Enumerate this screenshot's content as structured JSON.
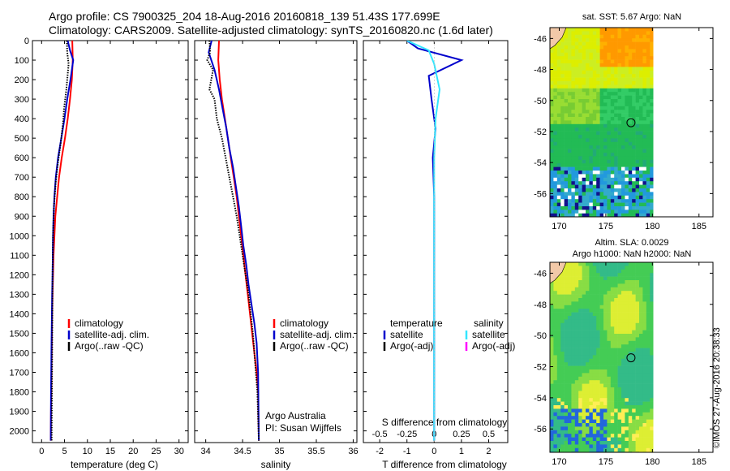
{
  "header": {
    "line1": "Argo profile: CS 7900325_204 18-Aug-2016 20160818_139 51.43S 177.699E",
    "line2": "Climatology: CARS2009. Satellite-adjusted climatology: synTS_20160820.nc (1.6d later)"
  },
  "credit": "©IMOS 27-Aug-2016 20:38:33",
  "colors": {
    "climatology": "#ff0000",
    "satellite": "#0000cc",
    "argo": "#000000",
    "satellite_salinity": "#33e6ff",
    "argo_adj_salinity": "#ff00ff"
  },
  "chart_data": [
    {
      "type": "line",
      "title": "",
      "xlabel": "temperature (deg C)",
      "ylabel": "",
      "xlim": [
        -2,
        32
      ],
      "ylim": [
        2060,
        0
      ],
      "x_ticks": [
        "0",
        "5",
        "10",
        "15",
        "20",
        "25",
        "30"
      ],
      "y_ticks": [
        "0",
        "100",
        "200",
        "300",
        "400",
        "500",
        "600",
        "700",
        "800",
        "900",
        "1000",
        "1100",
        "1200",
        "1300",
        "1400",
        "1500",
        "1600",
        "1700",
        "1800",
        "1900",
        "2000"
      ],
      "legend": {
        "placement": "center-left",
        "entries": [
          {
            "label": "climatology",
            "color": "#ff0000"
          },
          {
            "label": "satellite-adj. clim.",
            "color": "#0000cc"
          },
          {
            "label": "Argo(..raw -QC)",
            "color": "#000000"
          }
        ]
      },
      "series": [
        {
          "name": "climatology",
          "color": "#ff0000",
          "x": [
            6.7,
            6.8,
            6.6,
            6.2,
            5.7,
            5.1,
            4.4,
            3.8,
            3.4,
            3.0,
            2.8,
            2.6,
            2.5,
            2.4,
            2.3,
            2.25,
            2.2,
            2.15,
            2.1,
            2.05,
            2.0
          ],
          "y": [
            0,
            100,
            200,
            300,
            400,
            500,
            600,
            700,
            800,
            900,
            1000,
            1100,
            1200,
            1300,
            1400,
            1500,
            1600,
            1700,
            1800,
            1900,
            2050
          ]
        },
        {
          "name": "satellite-adj. clim.",
          "color": "#0000cc",
          "x": [
            5.7,
            6.2,
            6.9,
            6.3,
            5.6,
            5.0,
            4.3,
            3.6,
            3.1,
            2.8,
            2.6,
            2.5,
            2.45,
            2.4,
            2.3,
            2.25,
            2.2,
            2.15,
            2.1,
            2.05,
            2.0
          ],
          "y": [
            0,
            50,
            100,
            200,
            300,
            400,
            500,
            600,
            700,
            800,
            900,
            1000,
            1100,
            1200,
            1300,
            1400,
            1500,
            1600,
            1700,
            1800,
            2050
          ]
        },
        {
          "name": "Argo(..raw -QC)",
          "color": "#000000",
          "x": [
            5.5,
            5.6,
            5.9,
            5.4,
            4.9,
            4.7,
            4.2,
            3.6,
            3.1,
            2.7,
            2.5,
            2.4,
            2.3,
            2.2
          ],
          "y": [
            0,
            60,
            120,
            250,
            350,
            420,
            520,
            620,
            720,
            850,
            1000,
            1200,
            1600,
            2050
          ]
        }
      ]
    },
    {
      "type": "line",
      "title": "",
      "xlabel": "salinity",
      "ylabel": "",
      "xlim": [
        33.85,
        36.05
      ],
      "ylim": [
        2060,
        0
      ],
      "x_ticks": [
        "34",
        "34.5",
        "35",
        "35.5",
        "36"
      ],
      "legend": {
        "placement": "center-right",
        "entries": [
          {
            "label": "climatology",
            "color": "#ff0000"
          },
          {
            "label": "satellite-adj. clim.",
            "color": "#0000cc"
          },
          {
            "label": "Argo(..raw -QC)",
            "color": "#000000"
          }
        ]
      },
      "annotation": [
        "Argo Australia",
        "PI: Susan Wijffels"
      ],
      "series": [
        {
          "name": "climatology",
          "color": "#ff0000",
          "x": [
            34.18,
            34.17,
            34.19,
            34.22,
            34.26,
            34.3,
            34.34,
            34.38,
            34.42,
            34.45,
            34.48,
            34.51,
            34.54,
            34.57,
            34.6,
            34.63,
            34.66,
            34.69,
            34.71,
            34.72
          ],
          "y": [
            0,
            100,
            200,
            300,
            400,
            500,
            600,
            700,
            800,
            900,
            1000,
            1100,
            1200,
            1300,
            1400,
            1500,
            1600,
            1700,
            1800,
            2050
          ]
        },
        {
          "name": "satellite-adj. clim.",
          "color": "#0000cc",
          "x": [
            34.08,
            34.04,
            34.12,
            34.18,
            34.23,
            34.28,
            34.32,
            34.37,
            34.41,
            34.45,
            34.48,
            34.51,
            34.55,
            34.58,
            34.62,
            34.66,
            34.69,
            34.71,
            34.72
          ],
          "y": [
            0,
            60,
            150,
            250,
            350,
            450,
            550,
            650,
            750,
            850,
            950,
            1050,
            1150,
            1250,
            1350,
            1450,
            1550,
            1700,
            2050
          ]
        },
        {
          "name": "Argo(..raw -QC)",
          "color": "#000000",
          "x": [
            34.05,
            34.06,
            34.02,
            34.1,
            34.05,
            34.12,
            34.15,
            34.22,
            34.27,
            34.32,
            34.37,
            34.42,
            34.46,
            34.5,
            34.58,
            34.64,
            34.7,
            34.72
          ],
          "y": [
            0,
            60,
            100,
            150,
            250,
            300,
            400,
            500,
            600,
            700,
            800,
            900,
            1000,
            1100,
            1300,
            1500,
            1800,
            2050
          ]
        }
      ]
    },
    {
      "type": "line",
      "title": "",
      "xlabel": "T difference from climatology",
      "xlabel_top": "S difference from climatology",
      "xlim": [
        -2.6,
        2.7
      ],
      "ylim": [
        2060,
        0
      ],
      "x_ticks": [
        "-2",
        "-1",
        "0",
        "1",
        "2"
      ],
      "x_ticks_top": [
        "-0.5",
        "-0.25",
        "0",
        "0.25",
        "0.5"
      ],
      "legend": {
        "placement": "center",
        "entries": [
          {
            "group": "temperature",
            "label": "satellite",
            "color": "#0000cc"
          },
          {
            "group": "temperature",
            "label": "Argo(-adj)",
            "color": "#000000"
          },
          {
            "group": "salinity",
            "label": "satellite",
            "color": "#33e6ff"
          },
          {
            "group": "salinity",
            "label": "Argo(-adj)",
            "color": "#ff00ff"
          }
        ],
        "group_titles": [
          "temperature",
          "salinity"
        ]
      },
      "series": [
        {
          "name": "temperature satellite",
          "color": "#0000cc",
          "x": [
            -1.0,
            -0.6,
            1.0,
            -0.2,
            -0.1,
            0.05,
            -0.05,
            0.0,
            0.0,
            0.0,
            0.0
          ],
          "y": [
            0,
            40,
            100,
            180,
            300,
            450,
            600,
            800,
            1000,
            1500,
            2050
          ]
        },
        {
          "name": "salinity satellite",
          "color": "#33e6ff",
          "x": [
            -1.0,
            -0.2,
            0.0,
            0.2,
            0.05,
            0.0,
            0.0,
            0.0,
            0.0
          ],
          "y": [
            0,
            50,
            120,
            250,
            400,
            600,
            1000,
            1500,
            2050
          ]
        }
      ]
    },
    {
      "type": "heatmap",
      "title": "sat. SST: 5.67 Argo: NaN",
      "xlim": [
        169,
        186.5
      ],
      "ylim": [
        -57.5,
        -45.3
      ],
      "x_ticks": [
        "170",
        "175",
        "180",
        "185"
      ],
      "y_ticks": [
        "-46",
        "-48",
        "-50",
        "-52",
        "-54",
        "-56"
      ],
      "marker": {
        "lon": 177.7,
        "lat": -51.43
      }
    },
    {
      "type": "heatmap",
      "title": "Altim. SLA: 0.0029",
      "subtitle": "Argo h1000: NaN h2000: NaN",
      "xlim": [
        169,
        186.5
      ],
      "ylim": [
        -57.5,
        -45.3
      ],
      "x_ticks": [
        "170",
        "175",
        "180",
        "185"
      ],
      "y_ticks": [
        "-46",
        "-48",
        "-50",
        "-52",
        "-54",
        "-56"
      ],
      "marker": {
        "lon": 177.7,
        "lat": -51.43
      }
    }
  ]
}
